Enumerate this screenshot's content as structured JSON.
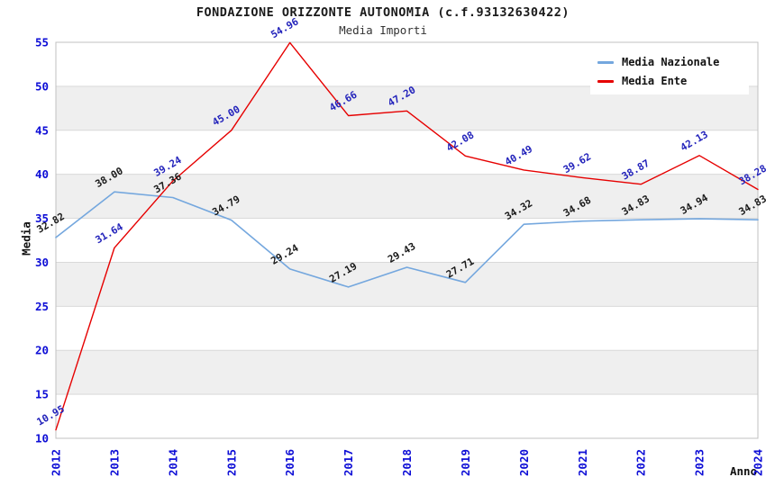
{
  "chart_data": {
    "type": "line",
    "title": "FONDAZIONE ORIZZONTE AUTONOMIA (c.f.93132630422)",
    "subtitle": "Media Importi",
    "xlabel": "Anno",
    "ylabel": "Media",
    "x": [
      2012,
      2013,
      2014,
      2015,
      2016,
      2017,
      2018,
      2019,
      2020,
      2021,
      2022,
      2023,
      2024
    ],
    "ylim": [
      10,
      55
    ],
    "yticks": [
      10,
      15,
      20,
      25,
      30,
      35,
      40,
      45,
      50,
      55
    ],
    "grid": true,
    "legend_position": "top-right",
    "series": [
      {
        "name": "Media Nazionale",
        "color": "#74A7DE",
        "label_color": "#1A1A1A",
        "values": [
          32.82,
          38.0,
          37.36,
          34.79,
          29.24,
          27.19,
          29.43,
          27.71,
          34.32,
          34.68,
          34.83,
          34.94,
          34.83
        ],
        "labels": [
          "32.82",
          "38.00",
          "37.36",
          "34.79",
          "29.24",
          "27.19",
          "29.43",
          "27.71",
          "34.32",
          "34.68",
          "34.83",
          "34.94",
          "34.83"
        ]
      },
      {
        "name": "Media Ente",
        "color": "#E60000",
        "label_color": "#2323BB",
        "values": [
          10.95,
          31.64,
          39.24,
          45.0,
          54.96,
          46.66,
          47.2,
          42.08,
          40.49,
          39.62,
          38.87,
          42.13,
          38.28
        ],
        "labels": [
          "10.95",
          "31.64",
          "39.24",
          "45.00",
          "54.96",
          "46.66",
          "47.20",
          "42.08",
          "40.49",
          "39.62",
          "38.87",
          "42.13",
          "38.28"
        ]
      }
    ],
    "style": {
      "tick_color": "#0D0DD6",
      "band_colors": [
        "#FFFFFF",
        "#EFEFEF"
      ],
      "grid_color": "#D9D9D9",
      "border_color": "#C0C0C0",
      "background": "#FFFFFF",
      "label_rotation_deg": -30
    }
  }
}
